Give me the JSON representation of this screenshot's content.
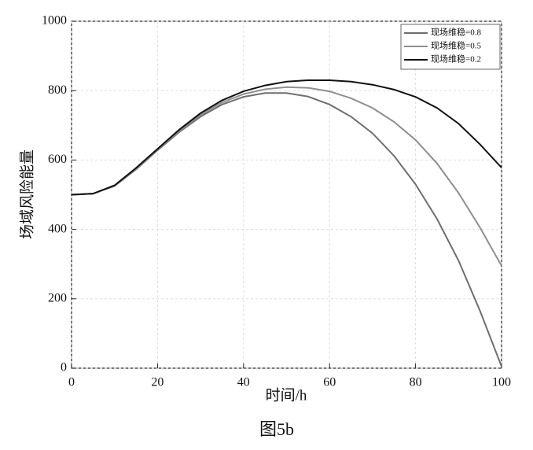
{
  "chart_data": {
    "type": "line",
    "title": "图5b",
    "x_label": "时间/h",
    "y_label": "场域风险能量",
    "x": [
      0,
      5,
      10,
      15,
      20,
      25,
      30,
      35,
      40,
      45,
      50,
      55,
      60,
      65,
      70,
      75,
      80,
      85,
      90,
      95,
      100
    ],
    "series": [
      {
        "name": "现场维稳=0.8",
        "color": "#6e6e6e",
        "values": [
          500,
          503,
          525,
          573,
          628,
          680,
          725,
          760,
          782,
          793,
          793,
          783,
          760,
          725,
          677,
          612,
          530,
          430,
          310,
          165,
          5
        ]
      },
      {
        "name": "现场维稳=0.5",
        "color": "#8e8e8e",
        "values": [
          500,
          503,
          526,
          575,
          630,
          683,
          730,
          766,
          790,
          804,
          810,
          808,
          798,
          778,
          750,
          710,
          658,
          590,
          505,
          405,
          295
        ]
      },
      {
        "name": "现场维稳=0.2",
        "color": "#111111",
        "values": [
          500,
          503,
          527,
          577,
          632,
          687,
          735,
          772,
          798,
          815,
          826,
          830,
          830,
          826,
          817,
          803,
          782,
          750,
          705,
          645,
          578
        ]
      }
    ],
    "xlim": [
      0,
      100
    ],
    "xticks": [
      0,
      20,
      40,
      60,
      80,
      100
    ],
    "ylim": [
      0,
      1000
    ],
    "yticks": [
      0,
      200,
      400,
      600,
      800,
      1000
    ],
    "grid": true,
    "legend": "top-right"
  }
}
